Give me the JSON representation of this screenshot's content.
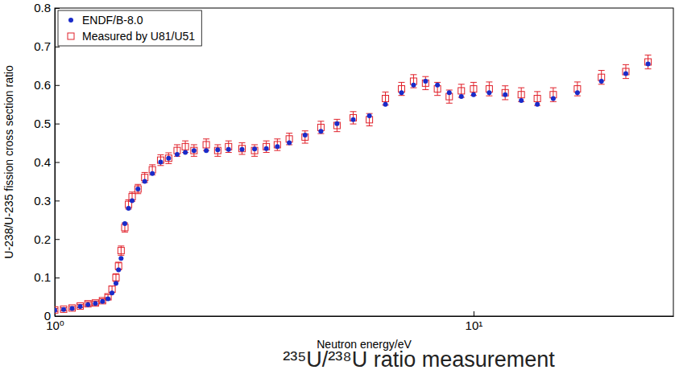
{
  "chart_data": {
    "type": "scatter",
    "title": "²³⁵U/²³⁸U ratio measurement",
    "x_label": "Neutron energy/eV",
    "y_label": "U-238/U-235 fission cross section ratio",
    "log": "x",
    "grid": false,
    "legend": "upper left",
    "xlim": [
      1,
      30
    ],
    "xticks": [
      {
        "value": 1,
        "label": "10⁰"
      },
      {
        "value": 10,
        "label": "10¹"
      }
    ],
    "ylim": [
      0,
      0.8
    ],
    "yticks": [
      0,
      0.1,
      0.2,
      0.3,
      0.4,
      0.5,
      0.6,
      0.7,
      0.8
    ],
    "x": [
      1.0,
      1.05,
      1.1,
      1.15,
      1.2,
      1.25,
      1.3,
      1.34,
      1.37,
      1.4,
      1.42,
      1.44,
      1.47,
      1.5,
      1.53,
      1.58,
      1.64,
      1.71,
      1.79,
      1.87,
      1.96,
      2.05,
      2.15,
      2.3,
      2.45,
      2.6,
      2.8,
      3.0,
      3.2,
      3.4,
      3.63,
      3.96,
      4.32,
      4.72,
      5.16,
      5.64,
      6.16,
      6.73,
      7.19,
      7.68,
      8.2,
      8.75,
      9.35,
      10.0,
      10.9,
      11.9,
      13.0,
      14.2,
      15.5,
      17.7,
      20.2,
      23.1,
      26.1
    ],
    "series": [
      {
        "name": "ENDF/B-8.0",
        "color": "#1a2bc9",
        "marker": "circle",
        "values": [
          0.015,
          0.017,
          0.02,
          0.025,
          0.03,
          0.033,
          0.038,
          0.045,
          0.06,
          0.085,
          0.12,
          0.15,
          0.24,
          0.28,
          0.3,
          0.33,
          0.35,
          0.37,
          0.4,
          0.41,
          0.42,
          0.425,
          0.43,
          0.43,
          0.432,
          0.433,
          0.433,
          0.434,
          0.435,
          0.44,
          0.45,
          0.47,
          0.48,
          0.5,
          0.51,
          0.52,
          0.55,
          0.58,
          0.6,
          0.61,
          0.6,
          0.58,
          0.57,
          0.575,
          0.58,
          0.575,
          0.56,
          0.55,
          0.565,
          0.58,
          0.61,
          0.63,
          0.655
        ]
      },
      {
        "name": "Measured by U81/U51",
        "color": "#e0202a",
        "marker": "square",
        "values": [
          0.016,
          0.018,
          0.021,
          0.026,
          0.032,
          0.034,
          0.04,
          0.05,
          0.07,
          0.1,
          0.13,
          0.17,
          0.23,
          0.29,
          0.31,
          0.33,
          0.36,
          0.38,
          0.405,
          0.41,
          0.43,
          0.44,
          0.43,
          0.445,
          0.43,
          0.44,
          0.435,
          0.43,
          0.44,
          0.445,
          0.46,
          0.465,
          0.49,
          0.495,
          0.515,
          0.51,
          0.565,
          0.59,
          0.61,
          0.605,
          0.59,
          0.57,
          0.585,
          0.59,
          0.59,
          0.58,
          0.575,
          0.565,
          0.575,
          0.59,
          0.62,
          0.635,
          0.66
        ],
        "errors": [
          0.004,
          0.004,
          0.004,
          0.004,
          0.005,
          0.005,
          0.005,
          0.006,
          0.008,
          0.01,
          0.01,
          0.012,
          0.012,
          0.012,
          0.012,
          0.012,
          0.013,
          0.013,
          0.014,
          0.014,
          0.015,
          0.015,
          0.015,
          0.015,
          0.015,
          0.015,
          0.015,
          0.015,
          0.015,
          0.015,
          0.015,
          0.016,
          0.016,
          0.016,
          0.016,
          0.016,
          0.017,
          0.017,
          0.017,
          0.017,
          0.017,
          0.017,
          0.017,
          0.017,
          0.018,
          0.018,
          0.018,
          0.018,
          0.018,
          0.018,
          0.018,
          0.018,
          0.018
        ]
      }
    ]
  }
}
